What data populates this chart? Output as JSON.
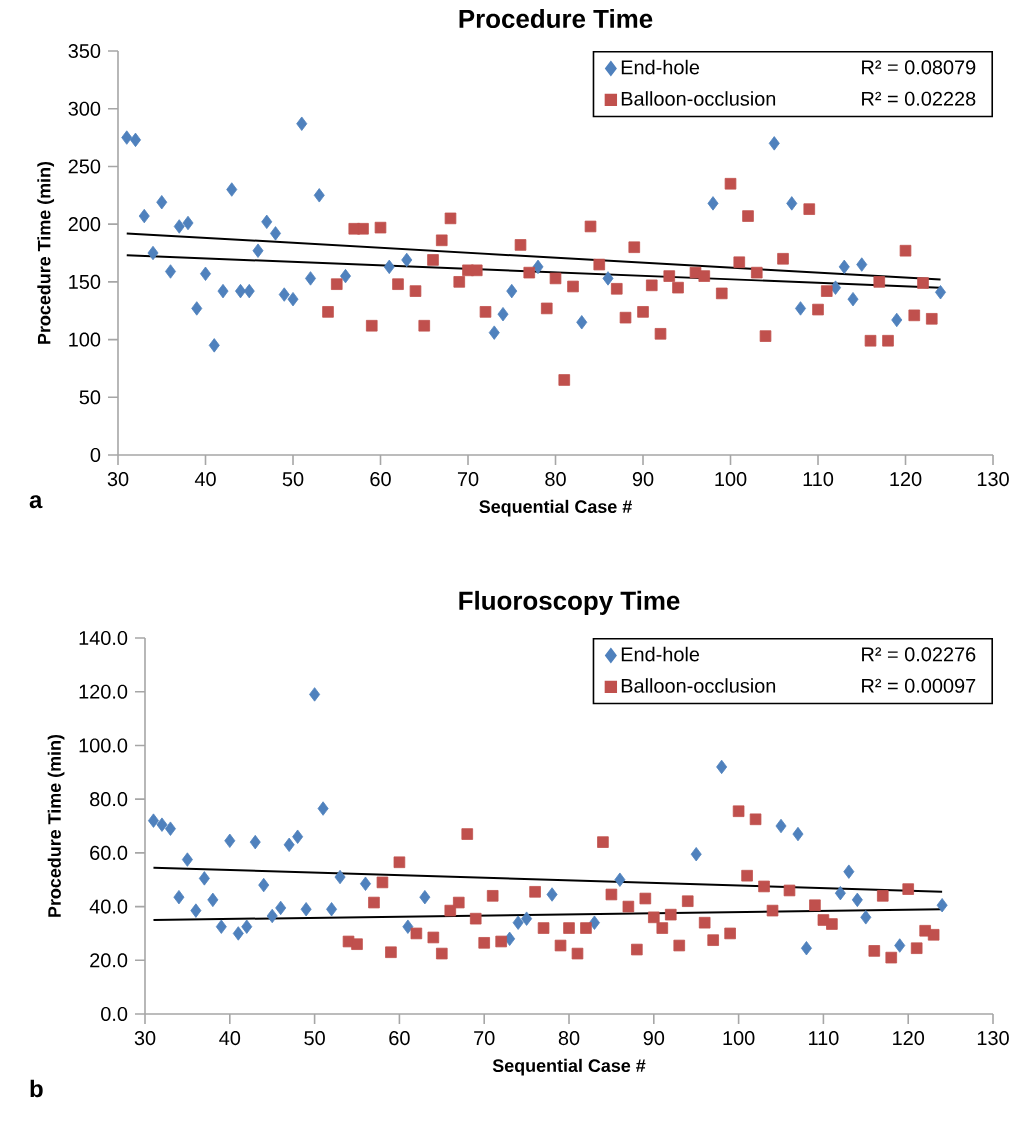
{
  "chart_data": [
    {
      "type": "scatter",
      "title": "Procedure Time",
      "xlabel": "Sequential Case #",
      "ylabel": "Procedure Time (min)",
      "xlim": [
        30,
        130
      ],
      "xticks": [
        30,
        40,
        50,
        60,
        70,
        80,
        90,
        100,
        110,
        120,
        130
      ],
      "ylim": [
        0,
        350
      ],
      "yticks": [
        0,
        50,
        100,
        150,
        200,
        250,
        300,
        350
      ],
      "legend": "top right",
      "annotations": [
        "R² = 0.08079",
        "R² = 0.02228",
        "a"
      ],
      "series": [
        {
          "name": "End-hole",
          "color": "#4f81bd",
          "marker": "diamond",
          "x": [
            31,
            32,
            33,
            34,
            35,
            36,
            37,
            38,
            39,
            40,
            41,
            42,
            43,
            44,
            45,
            46,
            47,
            48,
            49,
            50,
            51,
            52,
            53,
            56,
            61,
            63,
            73,
            74,
            75,
            78,
            83,
            86,
            98,
            105,
            107,
            108,
            112,
            113,
            114,
            115,
            119,
            124
          ],
          "values": [
            275,
            273,
            207,
            175,
            219,
            159,
            198,
            201,
            127,
            157,
            95,
            142,
            230,
            142,
            142,
            177,
            202,
            192,
            139,
            135,
            287,
            153,
            225,
            155,
            163,
            169,
            106,
            122,
            142,
            163,
            115,
            153,
            218,
            270,
            218,
            127,
            145,
            163,
            135,
            165,
            117,
            141
          ]
        },
        {
          "name": "Balloon-occlusion",
          "color": "#c0504d",
          "marker": "square",
          "x": [
            54,
            55,
            57,
            58,
            59,
            60,
            62,
            64,
            65,
            66,
            67,
            68,
            69,
            70,
            71,
            72,
            76,
            77,
            79,
            80,
            81,
            82,
            84,
            85,
            87,
            88,
            89,
            90,
            91,
            92,
            93,
            94,
            96,
            97,
            99,
            100,
            101,
            102,
            103,
            104,
            106,
            109,
            110,
            111,
            116,
            117,
            118,
            120,
            121,
            122,
            123
          ],
          "values": [
            124,
            148,
            196,
            196,
            112,
            197,
            148,
            142,
            112,
            169,
            186,
            205,
            150,
            160,
            160,
            124,
            182,
            158,
            127,
            153,
            65,
            146,
            198,
            165,
            144,
            119,
            180,
            124,
            147,
            105,
            155,
            145,
            158,
            155,
            140,
            235,
            167,
            207,
            158,
            103,
            170,
            213,
            126,
            142,
            99,
            150,
            99,
            177,
            121,
            149,
            118
          ]
        },
        {
          "type": "line",
          "color": "#000000",
          "marker": "none",
          "x": [
            31,
            124
          ],
          "values": [
            192,
            152
          ]
        },
        {
          "type": "line",
          "color": "#000000",
          "marker": "none",
          "x": [
            31,
            124
          ],
          "values": [
            173,
            145
          ]
        }
      ]
    },
    {
      "type": "scatter",
      "title": "Fluoroscopy Time",
      "xlabel": "Sequential Case #",
      "ylabel": "Procedure Time (min)",
      "xlim": [
        30,
        130
      ],
      "xticks": [
        30,
        40,
        50,
        60,
        70,
        80,
        90,
        100,
        110,
        120,
        130
      ],
      "ylim": [
        0,
        140
      ],
      "yticks": [
        {
          "value": 0,
          "label": "0.0"
        },
        {
          "value": 20,
          "label": "20.0"
        },
        {
          "value": 40,
          "label": "40.0"
        },
        {
          "value": 60,
          "label": "60.0"
        },
        {
          "value": 80,
          "label": "80.0"
        },
        {
          "value": 100,
          "label": "100.0"
        },
        {
          "value": 120,
          "label": "120.0"
        },
        {
          "value": 140,
          "label": "140.0"
        }
      ],
      "legend": "top right",
      "annotations": [
        "R² = 0.02276",
        "R² = 0.00097",
        "b"
      ],
      "series": [
        {
          "name": "End-hole",
          "color": "#4f81bd",
          "marker": "diamond",
          "x": [
            31,
            32,
            33,
            34,
            35,
            36,
            37,
            38,
            39,
            40,
            41,
            42,
            43,
            44,
            45,
            46,
            47,
            48,
            49,
            50,
            51,
            52,
            53,
            56,
            61,
            63,
            73,
            74,
            75,
            78,
            83,
            86,
            95,
            98,
            105,
            107,
            108,
            112,
            113,
            114,
            115,
            119,
            124
          ],
          "values": [
            72,
            70.5,
            69,
            43.5,
            57.5,
            38.5,
            50.5,
            42.5,
            32.5,
            64.5,
            30,
            32.5,
            64,
            48,
            36.5,
            39.5,
            63,
            66,
            39,
            119,
            76.5,
            39,
            51,
            48.5,
            32.5,
            43.5,
            28,
            34,
            35.5,
            44.5,
            34,
            50,
            59.5,
            92,
            70,
            67,
            24.5,
            45,
            53,
            42.5,
            36,
            25.5,
            40.5
          ]
        },
        {
          "name": "Balloon-occlusion",
          "color": "#c0504d",
          "marker": "square",
          "x": [
            54,
            55,
            57,
            58,
            59,
            60,
            62,
            64,
            65,
            66,
            67,
            68,
            69,
            70,
            71,
            72,
            76,
            77,
            79,
            80,
            81,
            82,
            84,
            85,
            87,
            88,
            89,
            90,
            91,
            92,
            93,
            94,
            96,
            97,
            99,
            100,
            101,
            102,
            103,
            104,
            106,
            109,
            110,
            111,
            116,
            117,
            118,
            120,
            121,
            122,
            123
          ],
          "values": [
            27,
            26,
            41.5,
            49,
            23,
            56.5,
            30,
            28.5,
            22.5,
            38.5,
            41.5,
            67,
            35.5,
            26.5,
            44,
            27,
            45.5,
            32,
            25.5,
            32,
            22.5,
            32,
            64,
            44.5,
            40,
            24,
            43,
            36,
            32,
            37,
            25.5,
            42,
            34,
            27.5,
            30,
            75.5,
            51.5,
            72.5,
            47.5,
            38.5,
            46,
            40.5,
            35,
            33.5,
            23.5,
            44,
            21,
            46.5,
            24.5,
            31,
            29.5
          ]
        },
        {
          "type": "line",
          "color": "#000000",
          "marker": "none",
          "x": [
            31,
            124
          ],
          "values": [
            54.5,
            45.5
          ]
        },
        {
          "type": "line",
          "color": "#000000",
          "marker": "none",
          "x": [
            31,
            124
          ],
          "values": [
            35,
            39
          ]
        }
      ]
    }
  ]
}
